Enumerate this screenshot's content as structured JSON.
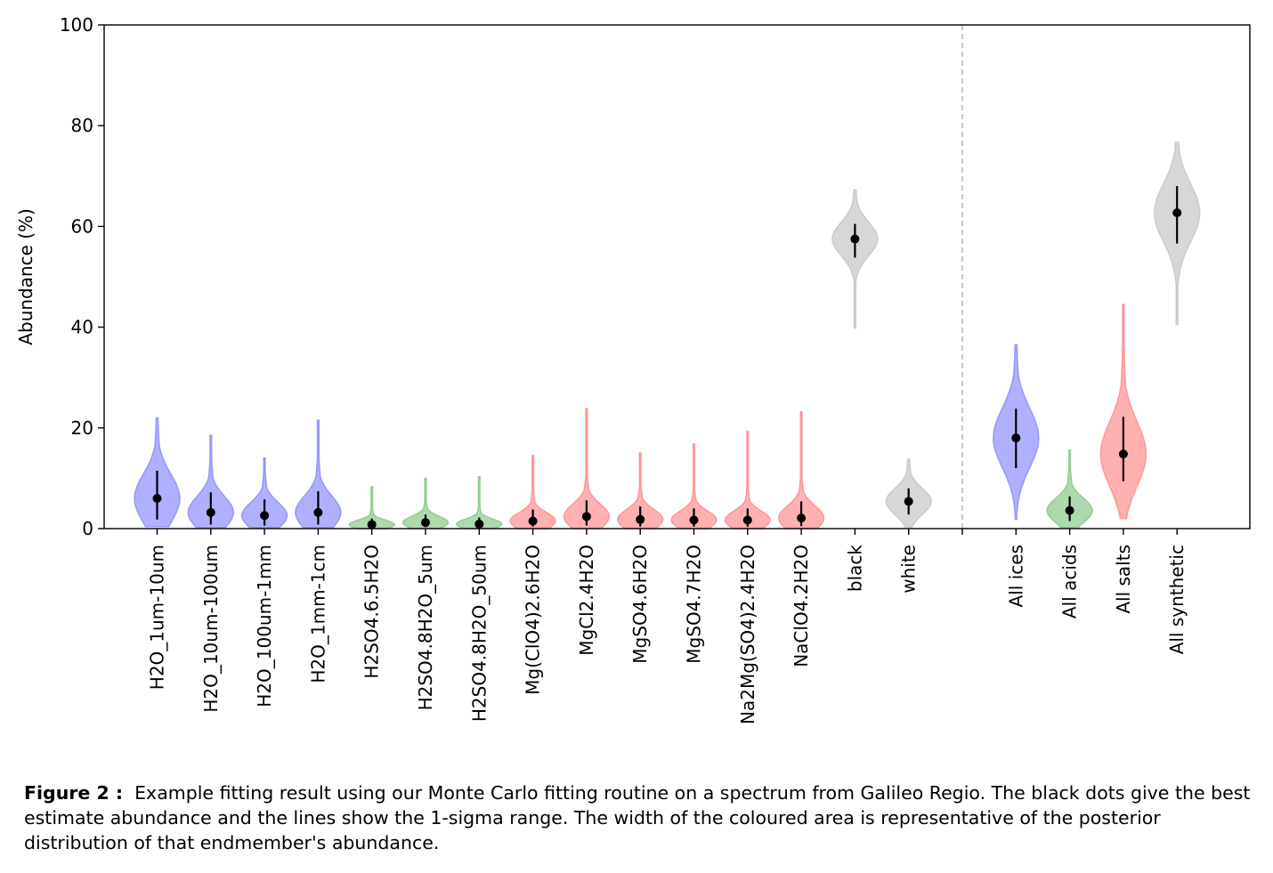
{
  "chart_data": {
    "type": "violin",
    "ylabel": "Abundance (%)",
    "ylim": [
      0,
      100
    ],
    "yticks": [
      0,
      20,
      40,
      60,
      80,
      100
    ],
    "grid": false,
    "separator_after_index": 14,
    "colors": {
      "ices": "#8080ff",
      "acids": "#7cc07c",
      "salts": "#ff8080",
      "synthetic": "#bfbfbf"
    },
    "items": [
      {
        "label": "H2O_1um-10um",
        "group": "ices",
        "estimate": 6.0,
        "sigma": [
          1.8,
          11.5
        ],
        "range": [
          0.4,
          22.0
        ]
      },
      {
        "label": "H2O_10um-100um",
        "group": "ices",
        "estimate": 3.2,
        "sigma": [
          0.8,
          7.2
        ],
        "range": [
          0.2,
          18.5
        ]
      },
      {
        "label": "H2O_100um-1mm",
        "group": "ices",
        "estimate": 2.6,
        "sigma": [
          0.6,
          5.8
        ],
        "range": [
          0.2,
          14.0
        ]
      },
      {
        "label": "H2O_1mm-1cm",
        "group": "ices",
        "estimate": 3.2,
        "sigma": [
          0.8,
          7.4
        ],
        "range": [
          0.2,
          21.5
        ]
      },
      {
        "label": "H2SO4.6.5H2O",
        "group": "acids",
        "estimate": 0.8,
        "sigma": [
          0.2,
          2.0
        ],
        "range": [
          0.0,
          8.3
        ]
      },
      {
        "label": "H2SO4.8H2O_5um",
        "group": "acids",
        "estimate": 1.2,
        "sigma": [
          0.3,
          2.8
        ],
        "range": [
          0.0,
          10.0
        ]
      },
      {
        "label": "H2SO4.8H2O_50um",
        "group": "acids",
        "estimate": 0.9,
        "sigma": [
          0.2,
          2.2
        ],
        "range": [
          0.0,
          10.3
        ]
      },
      {
        "label": "Mg(ClO4)2.6H2O",
        "group": "salts",
        "estimate": 1.5,
        "sigma": [
          0.4,
          3.8
        ],
        "range": [
          0.0,
          14.5
        ]
      },
      {
        "label": "MgCl2.4H2O",
        "group": "salts",
        "estimate": 2.4,
        "sigma": [
          0.6,
          5.6
        ],
        "range": [
          0.0,
          23.8
        ]
      },
      {
        "label": "MgSO4.6H2O",
        "group": "salts",
        "estimate": 1.8,
        "sigma": [
          0.4,
          4.4
        ],
        "range": [
          0.0,
          15.0
        ]
      },
      {
        "label": "MgSO4.7H2O",
        "group": "salts",
        "estimate": 1.7,
        "sigma": [
          0.4,
          4.0
        ],
        "range": [
          0.0,
          16.8
        ]
      },
      {
        "label": "Na2Mg(SO4)2.4H2O",
        "group": "salts",
        "estimate": 1.7,
        "sigma": [
          0.4,
          4.0
        ],
        "range": [
          0.0,
          19.3
        ]
      },
      {
        "label": "NaClO4.2H2O",
        "group": "salts",
        "estimate": 2.1,
        "sigma": [
          0.5,
          5.4
        ],
        "range": [
          0.0,
          23.2
        ]
      },
      {
        "label": "black",
        "group": "synthetic",
        "estimate": 57.5,
        "sigma": [
          53.8,
          60.5
        ],
        "range": [
          39.8,
          67.3
        ]
      },
      {
        "label": "white",
        "group": "synthetic",
        "estimate": 5.4,
        "sigma": [
          2.8,
          8.0
        ],
        "range": [
          0.3,
          13.8
        ]
      },
      {
        "label": "All ices",
        "group": "ices",
        "estimate": 18.0,
        "sigma": [
          12.0,
          23.8
        ],
        "range": [
          1.8,
          36.5
        ]
      },
      {
        "label": "All acids",
        "group": "acids",
        "estimate": 3.6,
        "sigma": [
          1.5,
          6.4
        ],
        "range": [
          0.2,
          15.6
        ]
      },
      {
        "label": "All salts",
        "group": "salts",
        "estimate": 14.8,
        "sigma": [
          9.4,
          22.2
        ],
        "range": [
          2.0,
          44.5
        ]
      },
      {
        "label": "All synthetic",
        "group": "synthetic",
        "estimate": 62.7,
        "sigma": [
          56.6,
          68.0
        ],
        "range": [
          40.5,
          76.7
        ]
      }
    ]
  },
  "caption": {
    "label": "Figure 2 :",
    "text": "Example fitting result using our Monte Carlo fitting routine on a spectrum from Galileo Regio. The black dots give the best estimate abundance and the lines show the 1-sigma range. The width of the coloured area is representative of the posterior distribution of that endmember's abundance."
  }
}
